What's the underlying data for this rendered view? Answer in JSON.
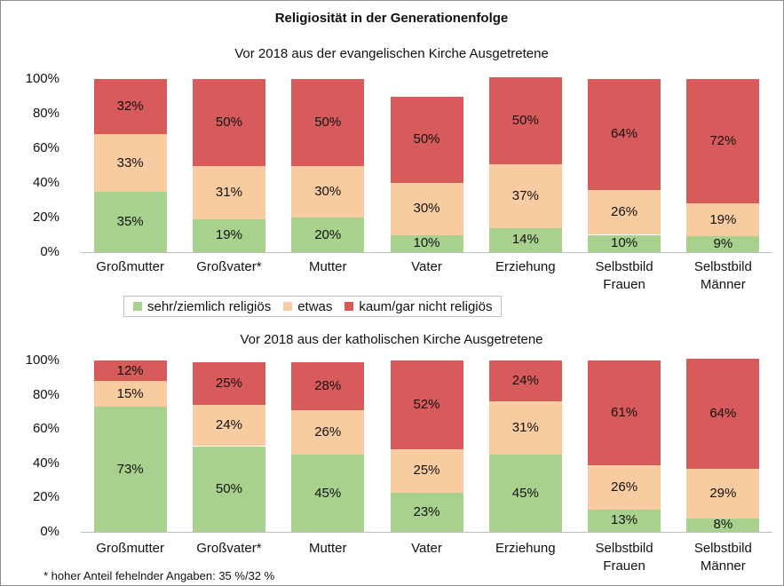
{
  "title": "Religiosität in der Generationenfolge",
  "note": "* hoher Anteil fehelnder Angaben: 35 %/32 %",
  "chart_data": [
    {
      "type": "bar",
      "stacked": true,
      "subtitle": "Vor 2018 aus der evangelischen Kirche Ausgetretene",
      "categories": [
        "Großmutter",
        "Großvater*",
        "Mutter",
        "Vater",
        "Erziehung",
        "Selbstbild\nFrauen",
        "Selbstbild\nMänner"
      ],
      "series": [
        {
          "name": "sehr/ziemlich religiös",
          "color": "#a9d18e",
          "values": [
            35,
            19,
            20,
            10,
            14,
            10,
            9
          ],
          "value_labels": [
            "35%",
            "19%",
            "20%",
            "10%",
            "14%",
            "10%",
            "9%"
          ]
        },
        {
          "name": "etwas",
          "color": "#f8cba0",
          "values": [
            33,
            31,
            30,
            30,
            37,
            26,
            19
          ],
          "value_labels": [
            "33%",
            "31%",
            "30%",
            "30%",
            "37%",
            "26%",
            "19%"
          ]
        },
        {
          "name": "kaum/gar nicht religiös",
          "color": "#d75b5b",
          "values": [
            32,
            50,
            50,
            50,
            50,
            64,
            72
          ],
          "value_labels": [
            "32%",
            "50%",
            "50%",
            "50%",
            "50%",
            "64%",
            "72%"
          ]
        }
      ],
      "ylim": [
        0,
        100
      ],
      "yticks": [
        {
          "value": 0,
          "label": "0%"
        },
        {
          "value": 20,
          "label": "20%"
        },
        {
          "value": 40,
          "label": "40%"
        },
        {
          "value": 60,
          "label": "60%"
        },
        {
          "value": 80,
          "label": "80%"
        },
        {
          "value": 100,
          "label": "100%"
        }
      ],
      "grid": false,
      "legend": "bottom"
    },
    {
      "type": "bar",
      "stacked": true,
      "subtitle": "Vor 2018 aus der katholischen Kirche Ausgetretene",
      "categories": [
        "Großmutter",
        "Großvater*",
        "Mutter",
        "Vater",
        "Erziehung",
        "Selbstbild\nFrauen",
        "Selbstbild\nMänner"
      ],
      "series": [
        {
          "color": "#a9d18e",
          "values": [
            73,
            50,
            45,
            23,
            45,
            13,
            8
          ],
          "value_labels": [
            "73%",
            "50%",
            "45%",
            "23%",
            "45%",
            "13%",
            "8%"
          ]
        },
        {
          "color": "#f8cba0",
          "values": [
            15,
            24,
            26,
            25,
            31,
            26,
            29
          ],
          "value_labels": [
            "15%",
            "24%",
            "26%",
            "25%",
            "31%",
            "26%",
            "29%"
          ]
        },
        {
          "color": "#d75b5b",
          "values": [
            12,
            25,
            28,
            52,
            24,
            61,
            64
          ],
          "value_labels": [
            "12%",
            "25%",
            "28%",
            "52%",
            "24%",
            "61%",
            "64%"
          ]
        }
      ],
      "ylim": [
        0,
        100
      ],
      "yticks": [
        {
          "value": 0,
          "label": "0%"
        },
        {
          "value": 20,
          "label": "20%"
        },
        {
          "value": 40,
          "label": "40%"
        },
        {
          "value": 60,
          "label": "60%"
        },
        {
          "value": 80,
          "label": "80%"
        },
        {
          "value": 100,
          "label": "100%"
        }
      ],
      "grid": false
    }
  ]
}
